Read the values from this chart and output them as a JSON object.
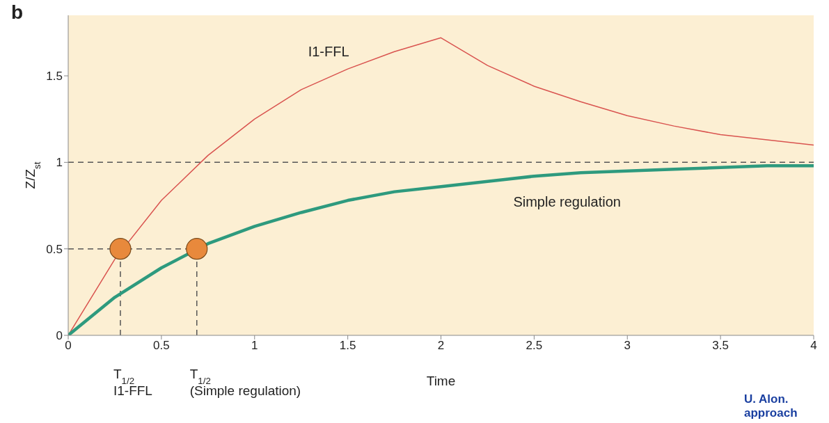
{
  "chart_data": {
    "type": "line",
    "xlabel": "Time",
    "ylabel": "Z/Z$_{st}$",
    "annotations": [
      "b",
      "U. Alon. approach"
    ],
    "xlim": [
      0,
      4
    ],
    "xticks": [
      0,
      0.5,
      1,
      1.5,
      2,
      2.5,
      3,
      3.5,
      4
    ],
    "ylim": [
      0,
      1.85
    ],
    "yticks": [
      0,
      0.5,
      1,
      1.5
    ],
    "grid": false,
    "legend": false,
    "marker": "none",
    "series": [
      {
        "name": "I1-FFL",
        "color": "#d9534f",
        "x": [
          0,
          0.25,
          0.5,
          0.75,
          1,
          1.25,
          1.5,
          1.75,
          2,
          2.25,
          2.5,
          2.75,
          3,
          3.25,
          3.5,
          3.75,
          4
        ],
        "values": [
          0,
          0.44,
          0.78,
          1.04,
          1.25,
          1.42,
          1.54,
          1.64,
          1.72,
          1.56,
          1.44,
          1.35,
          1.27,
          1.21,
          1.16,
          1.13,
          1.1
        ]
      },
      {
        "name": "Simple regulation",
        "color": "#2e9a7e",
        "x": [
          0,
          0.25,
          0.5,
          0.75,
          1,
          1.25,
          1.5,
          1.75,
          2,
          2.25,
          2.5,
          2.75,
          3,
          3.25,
          3.5,
          3.75,
          4
        ],
        "values": [
          0,
          0.22,
          0.39,
          0.53,
          0.63,
          0.71,
          0.78,
          0.83,
          0.86,
          0.89,
          0.92,
          0.94,
          0.95,
          0.96,
          0.97,
          0.98,
          0.98
        ]
      },
      {
        "type": "scatter",
        "marker": "circle",
        "color": "#e8893c",
        "x": [
          0.28,
          0.69
        ],
        "values": [
          0.5,
          0.5
        ]
      }
    ],
    "ref_lines": [
      {
        "axis": "y",
        "value": 1,
        "color": "#555555",
        "line_style": "dashed"
      },
      {
        "axis": "y",
        "value": 0.5,
        "color": "#555555",
        "line_style": "dashed"
      },
      {
        "axis": "x",
        "value": 0.28,
        "color": "#555555",
        "line_style": "dashed",
        "label": "T$_{1/2}$\nI1-FFL"
      },
      {
        "axis": "x",
        "value": 0.69,
        "color": "#555555",
        "line_style": "dashed",
        "label": "T$_{1/2}$\n(Simple regulation)"
      }
    ]
  }
}
